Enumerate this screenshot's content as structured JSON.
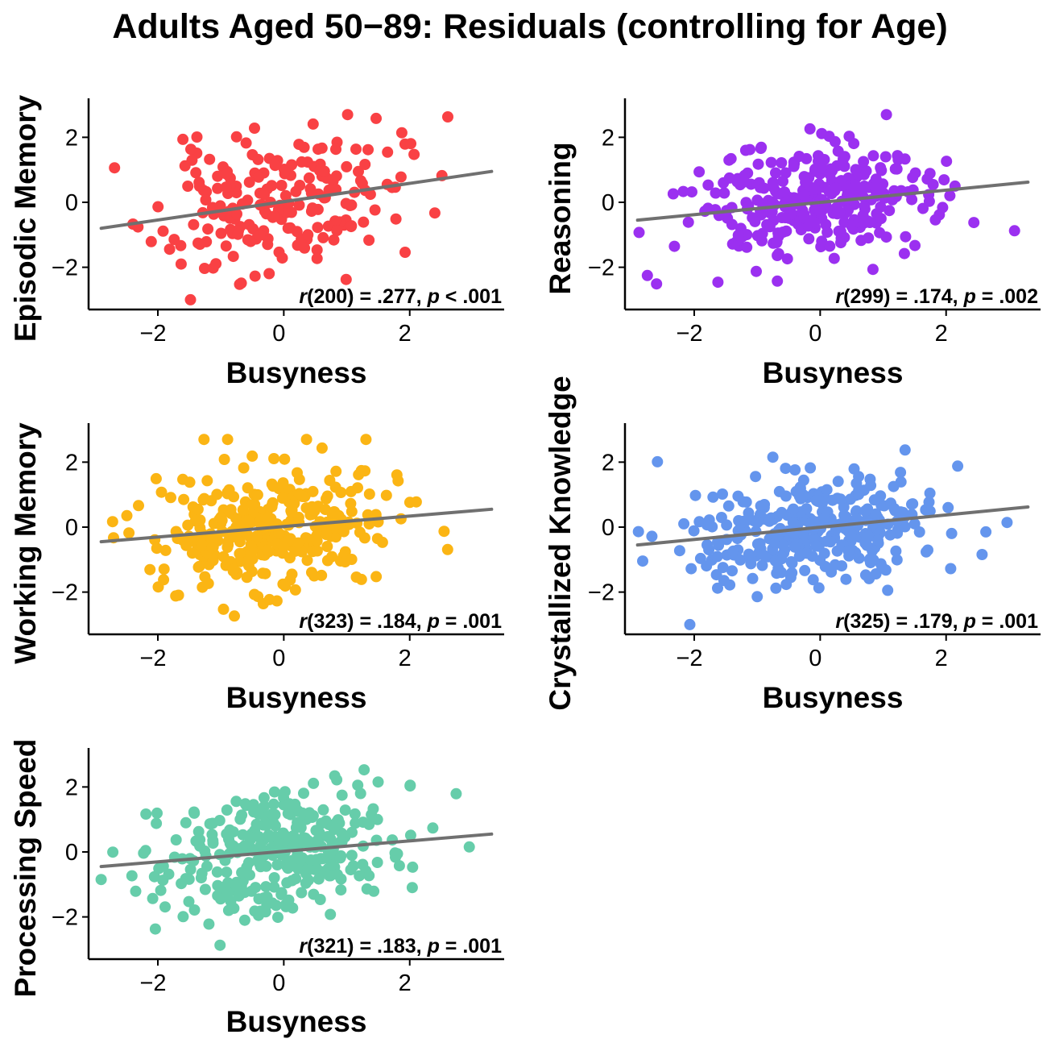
{
  "chart_data": {
    "type": "scatter",
    "title": "Adults Aged 50−89: Residuals (controlling for Age)",
    "panels": [
      {
        "id": "episodic",
        "xlabel": "Busyness",
        "ylabel": "Episodic Memory",
        "xlim": [
          -3.1,
          3.5
        ],
        "ylim": [
          -3.3,
          3.2
        ],
        "xticks": [
          -2,
          0,
          2
        ],
        "xtick_labels": [
          "−2",
          "0",
          "2"
        ],
        "yticks": [
          -2,
          0,
          2
        ],
        "ytick_labels": [
          "−2",
          "0",
          "2"
        ],
        "color": "#f94144",
        "n_points": 202,
        "seed": 11,
        "spread_y": 1.05,
        "fit_line": {
          "x": [
            -2.9,
            3.3
          ],
          "y": [
            -0.8,
            0.95
          ]
        },
        "stat": {
          "r_symbol": "r",
          "df": "(200)",
          "r_value": " = .277, ",
          "p_symbol": "p",
          "p_value": " < .001"
        }
      },
      {
        "id": "reasoning",
        "xlabel": "Busyness",
        "ylabel": "Reasoning",
        "xlim": [
          -3.1,
          3.5
        ],
        "ylim": [
          -3.3,
          3.2
        ],
        "xticks": [
          -2,
          0,
          2
        ],
        "xtick_labels": [
          "−2",
          "0",
          "2"
        ],
        "yticks": [
          -2,
          0,
          2
        ],
        "ytick_labels": [
          "−2",
          "0",
          "2"
        ],
        "color": "#9b30f0",
        "n_points": 301,
        "seed": 23,
        "spread_y": 0.9,
        "fit_line": {
          "x": [
            -2.9,
            3.3
          ],
          "y": [
            -0.55,
            0.62
          ]
        },
        "stat": {
          "r_symbol": "r",
          "df": "(299)",
          "r_value": " = .174, ",
          "p_symbol": "p",
          "p_value": " = .002"
        }
      },
      {
        "id": "working",
        "xlabel": "Busyness",
        "ylabel": "Working Memory",
        "xlim": [
          -3.1,
          3.5
        ],
        "ylim": [
          -3.3,
          3.2
        ],
        "xticks": [
          -2,
          0,
          2
        ],
        "xtick_labels": [
          "−2",
          "0",
          "2"
        ],
        "yticks": [
          -2,
          0,
          2
        ],
        "ytick_labels": [
          "−2",
          "0",
          "2"
        ],
        "color": "#fbb514",
        "n_points": 325,
        "seed": 37,
        "spread_y": 0.95,
        "fit_line": {
          "x": [
            -2.9,
            3.3
          ],
          "y": [
            -0.45,
            0.55
          ]
        },
        "stat": {
          "r_symbol": "r",
          "df": "(323)",
          "r_value": " = .184, ",
          "p_symbol": "p",
          "p_value": " = .001"
        }
      },
      {
        "id": "crystallized",
        "xlabel": "Busyness",
        "ylabel": "Crystallized Knowledge",
        "xlim": [
          -3.1,
          3.5
        ],
        "ylim": [
          -3.3,
          3.2
        ],
        "xticks": [
          -2,
          0,
          2
        ],
        "xtick_labels": [
          "−2",
          "0",
          "2"
        ],
        "yticks": [
          -2,
          0,
          2
        ],
        "ytick_labels": [
          "−2",
          "0",
          "2"
        ],
        "color": "#6495ed",
        "n_points": 327,
        "seed": 41,
        "spread_y": 0.9,
        "fit_line": {
          "x": [
            -2.9,
            3.3
          ],
          "y": [
            -0.55,
            0.62
          ]
        },
        "stat": {
          "r_symbol": "r",
          "df": "(325)",
          "r_value": " = .179, ",
          "p_symbol": "p",
          "p_value": " = .001"
        }
      },
      {
        "id": "speed",
        "xlabel": "Busyness",
        "ylabel": "Processing Speed",
        "xlim": [
          -3.1,
          3.5
        ],
        "ylim": [
          -3.3,
          3.2
        ],
        "xticks": [
          -2,
          0,
          2
        ],
        "xtick_labels": [
          "−2",
          "0",
          "2"
        ],
        "yticks": [
          -2,
          0,
          2
        ],
        "ytick_labels": [
          "−2",
          "0",
          "2"
        ],
        "color": "#66cdaa",
        "n_points": 323,
        "seed": 53,
        "spread_y": 0.95,
        "fit_line": {
          "x": [
            -2.9,
            3.3
          ],
          "y": [
            -0.45,
            0.55
          ]
        },
        "stat": {
          "r_symbol": "r",
          "df": "(321)",
          "r_value": " = .183, ",
          "p_symbol": "p",
          "p_value": " = .001"
        }
      }
    ]
  }
}
